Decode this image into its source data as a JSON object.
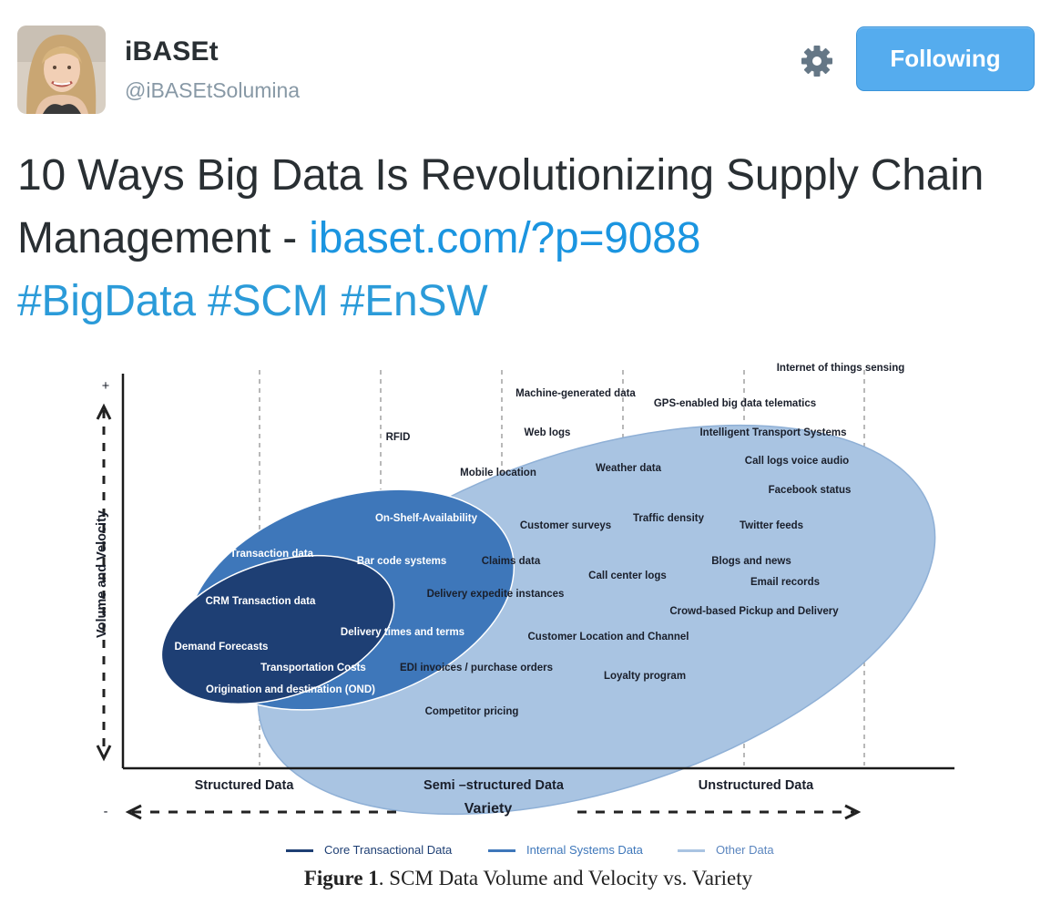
{
  "user": {
    "name": "iBASEt",
    "handle": "@iBASEtSolumina"
  },
  "actions": {
    "follow_label": "Following",
    "settings_icon": "gear-icon"
  },
  "tweet": {
    "text": "10 Ways Big Data Is Revolutionizing Supply Chain Management - ",
    "link": "ibaset.com/?p=9088",
    "hashtags": [
      "#BigData",
      "#SCM",
      "#EnSW"
    ]
  },
  "colors": {
    "follow_button": "#55acee",
    "link": "#1b95e0",
    "core_data": "#1e3f74",
    "internal_data": "#3e77ba",
    "other_data": "#a9c4e2"
  },
  "figure": {
    "y_plus": "+",
    "y_axis_label": "Volume and Velocity",
    "x_axis_label": "Variety",
    "x_minus": "-",
    "categories": [
      "Structured Data",
      "Semi –structured Data",
      "Unstructured Data"
    ],
    "core_items": [
      "CRM Transaction data",
      "Demand Forecasts",
      "Origination and destination (OND)"
    ],
    "internal_items": [
      "On-Shelf-Availability",
      "ERP Transaction data",
      "Bar code systems",
      "Delivery times and terms",
      "Transportation Costs"
    ],
    "other_items": [
      "Internet of things sensing",
      "Machine-generated data",
      "GPS-enabled big data telematics",
      "RFID",
      "Web logs",
      "Intelligent Transport Systems",
      "Call logs voice audio",
      "Mobile location",
      "Weather data",
      "Facebook status",
      "Customer surveys",
      "Traffic density",
      "Twitter feeds",
      "Claims data",
      "Blogs and news",
      "Call center logs",
      "Email records",
      "Delivery expedite instances",
      "Crowd-based Pickup and Delivery",
      "Customer Location and Channel",
      "EDI invoices / purchase orders",
      "Loyalty program",
      "Competitor pricing"
    ],
    "legend": [
      "Core Transactional Data",
      "Internal  Systems Data",
      "Other Data"
    ],
    "caption_bold": "Figure 1",
    "caption_text": ". SCM Data Volume and Velocity vs. Variety"
  }
}
